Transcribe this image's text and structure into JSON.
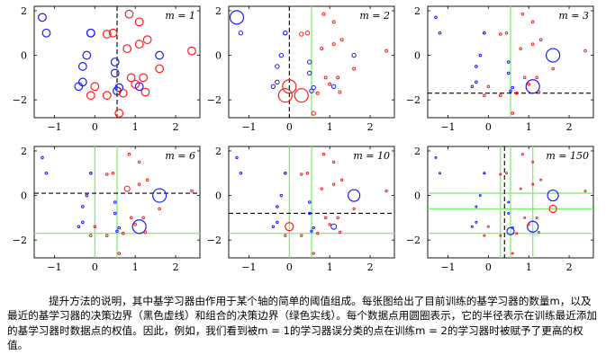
{
  "figure": {
    "panels": [
      {
        "m_label": "m = 1",
        "stump": {
          "axis": "x",
          "value": 0.55
        },
        "ensemble": [],
        "weights": "equal"
      },
      {
        "m_label": "m = 2",
        "stump": {
          "axis": "x",
          "value": 0.0
        },
        "ensemble": [
          {
            "axis": "x",
            "value": 0.55
          }
        ],
        "weights": "round2"
      },
      {
        "m_label": "m = 3",
        "stump": {
          "axis": "y",
          "value": -1.7
        },
        "ensemble": [
          {
            "axis": "x",
            "value": 0.55
          }
        ],
        "weights": "round3"
      },
      {
        "m_label": "m = 6",
        "stump": {
          "axis": "y",
          "value": 0.1
        },
        "ensemble": [
          {
            "axis": "x",
            "value": 0.0
          },
          {
            "axis": "x",
            "value": 0.55
          },
          {
            "axis": "y",
            "value": -1.7
          }
        ],
        "weights": "round6"
      },
      {
        "m_label": "m = 10",
        "stump": {
          "axis": "y",
          "value": -0.8
        },
        "ensemble": [
          {
            "axis": "x",
            "value": 0.0
          },
          {
            "axis": "x",
            "value": 0.55
          },
          {
            "axis": "y",
            "value": -1.7
          }
        ],
        "weights": "round10"
      },
      {
        "m_label": "m = 150",
        "stump": {
          "axis": "x",
          "value": 0.4
        },
        "ensemble": [
          {
            "axis": "x",
            "value": 0.3
          },
          {
            "axis": "x",
            "value": 0.55
          },
          {
            "axis": "x",
            "value": 1.1
          },
          {
            "axis": "y",
            "value": 0.1
          },
          {
            "axis": "y",
            "value": -1.7
          },
          {
            "axis": "y",
            "value": -0.6
          }
        ],
        "weights": "round150"
      }
    ],
    "x_ticks": [
      "−1",
      "0",
      "1",
      "2"
    ],
    "y_ticks": [
      "2",
      "0",
      "−2"
    ],
    "xlim": [
      -1.5,
      2.6
    ],
    "ylim": [
      -2.8,
      2.2
    ],
    "colors": {
      "class_blue": "#1a1aff",
      "class_red": "#ff1a1a",
      "stump": "#000000",
      "ensemble": "#80ee70",
      "axis": "#000000"
    },
    "points": [
      {
        "x": -1.3,
        "y": 1.7,
        "c": "blue"
      },
      {
        "x": -1.2,
        "y": 1.0,
        "c": "blue"
      },
      {
        "x": -0.1,
        "y": 1.0,
        "c": "blue"
      },
      {
        "x": -0.1,
        "y": 1.0,
        "c": "blue"
      },
      {
        "x": -0.2,
        "y": 0.0,
        "c": "blue"
      },
      {
        "x": -0.3,
        "y": -0.5,
        "c": "blue"
      },
      {
        "x": -0.3,
        "y": -1.2,
        "c": "blue"
      },
      {
        "x": -0.4,
        "y": -1.4,
        "c": "blue"
      },
      {
        "x": 0.5,
        "y": -0.3,
        "c": "blue"
      },
      {
        "x": 0.5,
        "y": -0.8,
        "c": "blue"
      },
      {
        "x": 0.55,
        "y": -1.6,
        "c": "blue"
      },
      {
        "x": 0.6,
        "y": -1.45,
        "c": "blue"
      },
      {
        "x": 1.1,
        "y": -1.4,
        "c": "blue"
      },
      {
        "x": 1.6,
        "y": 0.0,
        "c": "blue"
      },
      {
        "x": 0.45,
        "y": 1.0,
        "c": "red"
      },
      {
        "x": 0.85,
        "y": 1.85,
        "c": "red"
      },
      {
        "x": 1.1,
        "y": 1.5,
        "c": "red"
      },
      {
        "x": 1.3,
        "y": 0.7,
        "c": "red"
      },
      {
        "x": 1.1,
        "y": 0.5,
        "c": "red"
      },
      {
        "x": 2.4,
        "y": 0.2,
        "c": "red"
      },
      {
        "x": 0.3,
        "y": 0.95,
        "c": "red"
      },
      {
        "x": 0.8,
        "y": 0.3,
        "c": "red"
      },
      {
        "x": 1.6,
        "y": -0.6,
        "c": "red"
      },
      {
        "x": 1.2,
        "y": -1.0,
        "c": "red"
      },
      {
        "x": 0.9,
        "y": -1.0,
        "c": "red"
      },
      {
        "x": 1.25,
        "y": -1.65,
        "c": "red"
      },
      {
        "x": 0.0,
        "y": -1.4,
        "c": "red"
      },
      {
        "x": 0.3,
        "y": -1.8,
        "c": "red"
      },
      {
        "x": -0.1,
        "y": -1.8,
        "c": "red"
      },
      {
        "x": 0.7,
        "y": -1.7,
        "c": "red"
      },
      {
        "x": 1.0,
        "y": -1.3,
        "c": "red"
      },
      {
        "x": 0.6,
        "y": -2.6,
        "c": "red"
      }
    ]
  },
  "caption": "提升方法的说明，其中基学习器由作用于某个轴的简单的阈值组成。每张图给出了目前训练的基学习器的数量m，以及最近的基学习器的决策边界（黑色虚线）和组合的决策边界（绿色实线）。每个数据点用圆圈表示，它的半径表示在训练最近添加的基学习器时数据点的权值。因此，例如，我们看到被m = 1的学习器误分类的点在训练m = 2的学习器时被赋予了更高的权值。"
}
